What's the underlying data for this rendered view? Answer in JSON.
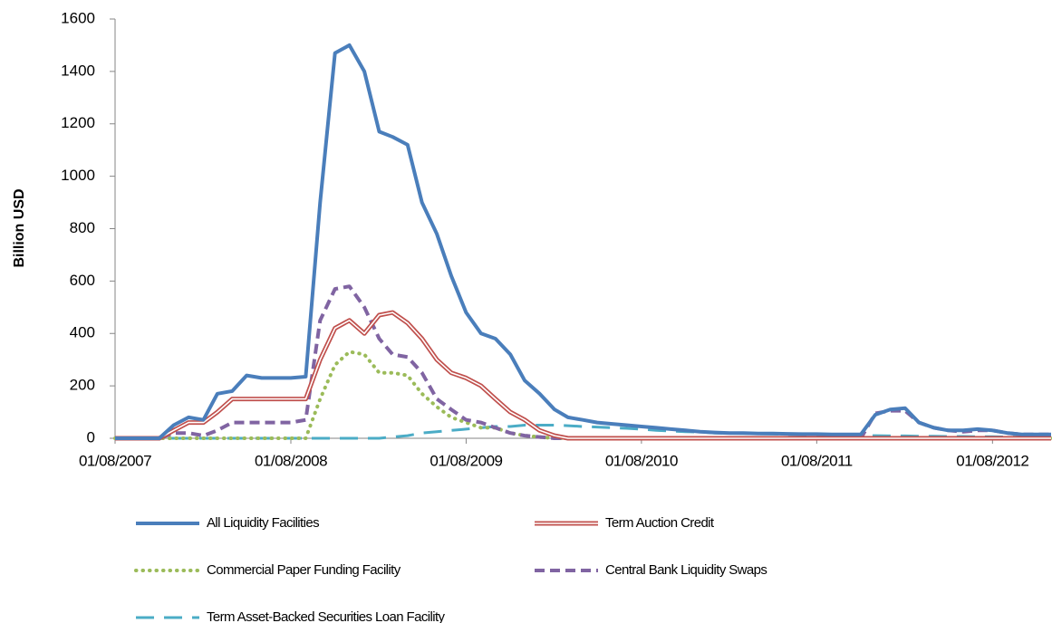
{
  "chart_data": {
    "type": "line",
    "y_label": "Billion USD",
    "x": [
      "01/08/2007",
      "01/09/2007",
      "01/10/2007",
      "01/11/2007",
      "01/12/2007",
      "01/01/2008",
      "01/02/2008",
      "01/03/2008",
      "01/04/2008",
      "01/05/2008",
      "01/06/2008",
      "01/07/2008",
      "01/08/2008",
      "01/09/2008",
      "01/10/2008",
      "01/11/2008",
      "01/12/2008",
      "01/01/2009",
      "01/02/2009",
      "01/03/2009",
      "01/04/2009",
      "01/05/2009",
      "01/06/2009",
      "01/07/2009",
      "01/08/2009",
      "01/09/2009",
      "01/10/2009",
      "01/11/2009",
      "01/12/2009",
      "01/01/2010",
      "01/02/2010",
      "01/03/2010",
      "01/04/2010",
      "01/05/2010",
      "01/06/2010",
      "01/07/2010",
      "01/08/2010",
      "01/09/2010",
      "01/10/2010",
      "01/11/2010",
      "01/12/2010",
      "01/01/2011",
      "01/02/2011",
      "01/03/2011",
      "01/04/2011",
      "01/05/2011",
      "01/06/2011",
      "01/07/2011",
      "01/08/2011",
      "01/09/2011",
      "01/10/2011",
      "01/11/2011",
      "01/12/2011",
      "01/01/2012",
      "01/02/2012",
      "01/03/2012",
      "01/04/2012",
      "01/05/2012",
      "01/06/2012",
      "01/07/2012",
      "01/08/2012",
      "01/09/2012",
      "01/10/2012",
      "01/11/2012",
      "01/12/2012"
    ],
    "series": [
      {
        "name": "All Liquidity Facilities",
        "color": "#4a7ebb",
        "dash": "solid",
        "values": [
          0,
          0,
          0,
          0,
          50,
          80,
          70,
          170,
          180,
          240,
          230,
          230,
          230,
          235,
          900,
          1470,
          1500,
          1400,
          1170,
          1150,
          1120,
          900,
          780,
          620,
          480,
          400,
          380,
          320,
          220,
          170,
          110,
          80,
          70,
          60,
          55,
          50,
          45,
          40,
          35,
          30,
          25,
          22,
          20,
          20,
          18,
          18,
          17,
          16,
          16,
          15,
          15,
          15,
          90,
          110,
          115,
          60,
          40,
          30,
          30,
          35,
          30,
          20,
          15,
          15,
          15
        ]
      },
      {
        "name": "Term Auction Credit",
        "color": "#c0504d",
        "dash": "double",
        "values": [
          0,
          0,
          0,
          0,
          30,
          60,
          60,
          100,
          150,
          150,
          150,
          150,
          150,
          150,
          300,
          420,
          450,
          400,
          470,
          480,
          440,
          380,
          300,
          250,
          230,
          200,
          150,
          100,
          70,
          30,
          10,
          0,
          0,
          0,
          0,
          0,
          0,
          0,
          0,
          0,
          0,
          0,
          0,
          0,
          0,
          0,
          0,
          0,
          0,
          0,
          0,
          0,
          0,
          0,
          0,
          0,
          0,
          0,
          0,
          0,
          0,
          0,
          0,
          0,
          0
        ]
      },
      {
        "name": "Commercial Paper Funding Facility",
        "color": "#9bbb59",
        "dash": "dotted",
        "values": [
          0,
          0,
          0,
          0,
          0,
          0,
          0,
          0,
          0,
          0,
          0,
          0,
          0,
          0,
          150,
          280,
          330,
          320,
          250,
          250,
          240,
          170,
          120,
          80,
          60,
          40,
          40,
          20,
          10,
          5,
          0,
          0,
          0,
          0,
          0,
          0,
          0,
          0,
          0,
          0,
          0,
          0,
          0,
          0,
          0,
          0,
          0,
          0,
          0,
          0,
          0,
          0,
          0,
          0,
          0,
          0,
          0,
          0,
          0,
          0,
          0,
          0,
          0,
          0,
          0
        ]
      },
      {
        "name": "Central Bank Liquidity Swaps",
        "color": "#8064a2",
        "dash": "dashed",
        "values": [
          0,
          0,
          0,
          0,
          20,
          20,
          10,
          30,
          60,
          60,
          60,
          60,
          60,
          70,
          450,
          570,
          580,
          500,
          380,
          320,
          310,
          250,
          150,
          110,
          70,
          60,
          40,
          20,
          10,
          5,
          0,
          0,
          0,
          0,
          0,
          0,
          0,
          0,
          0,
          0,
          0,
          0,
          0,
          0,
          0,
          0,
          0,
          0,
          0,
          0,
          0,
          0,
          95,
          105,
          105,
          60,
          40,
          30,
          25,
          30,
          30,
          20,
          15,
          15,
          15
        ]
      },
      {
        "name": "Term Asset-Backed Securities Loan Facility",
        "color": "#4bacc6",
        "dash": "long-dash",
        "values": [
          0,
          0,
          0,
          0,
          0,
          0,
          0,
          0,
          0,
          0,
          0,
          0,
          0,
          0,
          0,
          0,
          0,
          0,
          0,
          5,
          10,
          20,
          25,
          30,
          35,
          40,
          45,
          45,
          50,
          50,
          50,
          48,
          45,
          43,
          40,
          38,
          35,
          30,
          28,
          25,
          24,
          20,
          19,
          18,
          17,
          16,
          15,
          14,
          13,
          12,
          11,
          10,
          10,
          9,
          9,
          8,
          8,
          7,
          7,
          6,
          6,
          5,
          5,
          5,
          5
        ]
      }
    ],
    "xlim": [
      "01/08/2007",
      "01/12/2012"
    ],
    "xticks": [
      "01/08/2007",
      "01/08/2008",
      "01/08/2009",
      "01/08/2010",
      "01/08/2011",
      "01/08/2012"
    ],
    "ylim": [
      0,
      1600
    ],
    "yticks": [
      0,
      200,
      400,
      600,
      800,
      1000,
      1200,
      1400,
      1600
    ],
    "grid": false,
    "legend": "bottom"
  }
}
